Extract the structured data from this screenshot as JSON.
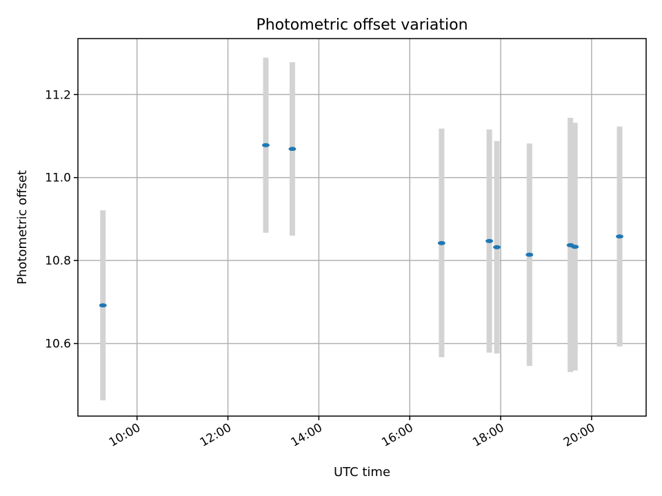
{
  "chart_data": {
    "type": "scatter",
    "title": "Photometric offset variation",
    "xlabel": "UTC time",
    "ylabel": "Photometric offset",
    "x_is_time": true,
    "xlim": [
      "08:42",
      "21:12"
    ],
    "ylim": [
      10.425,
      11.335
    ],
    "x_ticks": [
      "10:00",
      "12:00",
      "14:00",
      "16:00",
      "18:00",
      "20:00"
    ],
    "y_ticks": [
      10.6,
      10.8,
      11.0,
      11.2
    ],
    "y_tick_labels": [
      "10.6",
      "10.8",
      "11.0",
      "11.2"
    ],
    "grid": true,
    "point_color": "#1f77b4",
    "errorbar_color": "#d3d3d3",
    "points": [
      {
        "x": "09:15",
        "y": 10.692,
        "ylow": 10.463,
        "yhigh": 10.921
      },
      {
        "x": "12:50",
        "y": 11.078,
        "ylow": 10.867,
        "yhigh": 11.289
      },
      {
        "x": "13:25",
        "y": 11.069,
        "ylow": 10.86,
        "yhigh": 11.278
      },
      {
        "x": "16:42",
        "y": 10.842,
        "ylow": 10.567,
        "yhigh": 11.118
      },
      {
        "x": "17:45",
        "y": 10.847,
        "ylow": 10.578,
        "yhigh": 11.116
      },
      {
        "x": "17:55",
        "y": 10.832,
        "ylow": 10.576,
        "yhigh": 11.088
      },
      {
        "x": "18:38",
        "y": 10.814,
        "ylow": 10.546,
        "yhigh": 11.082
      },
      {
        "x": "19:32",
        "y": 10.837,
        "ylow": 10.531,
        "yhigh": 11.144
      },
      {
        "x": "19:38",
        "y": 10.833,
        "ylow": 10.535,
        "yhigh": 11.132
      },
      {
        "x": "20:37",
        "y": 10.858,
        "ylow": 10.593,
        "yhigh": 11.123
      }
    ]
  }
}
